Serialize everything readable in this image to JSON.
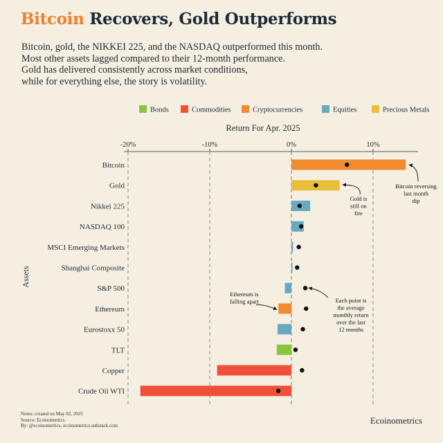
{
  "title_accent": "Bitcoin",
  "title_rest": " Recovers, Gold Outperforms",
  "subtitle_lines": [
    "Bitcoin, gold, the NIKKEI 225, and the NASDAQ outperformed this month.",
    "Most other assets lagged compared to their 12-month performance.",
    "Gold has delivered consistently across market conditions,",
    "while for everything else, the story is volatility."
  ],
  "notes_lines": [
    "Notes: created on May 02, 2025",
    "Source: Ecoinometrics",
    "By: @ecoinometrics, ecoinometrics.substack.com"
  ],
  "brand": "Ecoinometrics",
  "colors": {
    "Bonds": "#8ac53b",
    "Commodities": "#f05039",
    "Cryptocurrencies": "#f28a30",
    "Equities": "#6aa8c2",
    "Precious Metals": "#e8be3c"
  },
  "chart_data": {
    "type": "bar",
    "orientation": "horizontal",
    "title": "Return For Apr. 2025",
    "xlabel": "",
    "ylabel": "Assets",
    "xlim": [
      -20.5,
      15.5
    ],
    "xticks": [
      -20,
      -10,
      0,
      10
    ],
    "xtick_labels": [
      "-20%",
      "-10%",
      "0%",
      "10%"
    ],
    "legend": [
      "Bonds",
      "Commodities",
      "Cryptocurrencies",
      "Equities",
      "Precious Metals"
    ],
    "legend_position": "top-right",
    "categories": [
      "Bitcoin",
      "Gold",
      "Nikkei 225",
      "NASDAQ 100",
      "MSCI Emerging Markets",
      "Shanghai Composite",
      "S&P 500",
      "Ethereum",
      "Eurostoxx 50",
      "TLT",
      "Copper",
      "Crude Oil WTI"
    ],
    "groups": [
      "Cryptocurrencies",
      "Precious Metals",
      "Equities",
      "Equities",
      "Equities",
      "Equities",
      "Equities",
      "Cryptocurrencies",
      "Equities",
      "Bonds",
      "Commodities",
      "Commodities"
    ],
    "values": [
      14.0,
      5.9,
      2.3,
      1.5,
      0.2,
      0.0,
      -0.8,
      -1.6,
      -1.7,
      -1.8,
      -9.1,
      -18.5
    ],
    "avg_monthly_return_12m": [
      6.8,
      3.0,
      1.0,
      1.2,
      0.9,
      0.7,
      1.7,
      1.8,
      1.4,
      0.5,
      1.3,
      -1.6
    ],
    "annotations": [
      {
        "text": [
          "Bitcoin reversing",
          "last month",
          "dip"
        ],
        "target": "Bitcoin"
      },
      {
        "text": [
          "Gold is",
          "still on",
          "fire"
        ],
        "target": "Gold"
      },
      {
        "text": [
          "Each point is",
          "the average",
          "monthly return",
          "over the last",
          "12 months"
        ],
        "target": "S&P 500"
      },
      {
        "text": [
          "Ethereum is",
          "falling apart"
        ],
        "target": "Ethereum"
      }
    ]
  }
}
